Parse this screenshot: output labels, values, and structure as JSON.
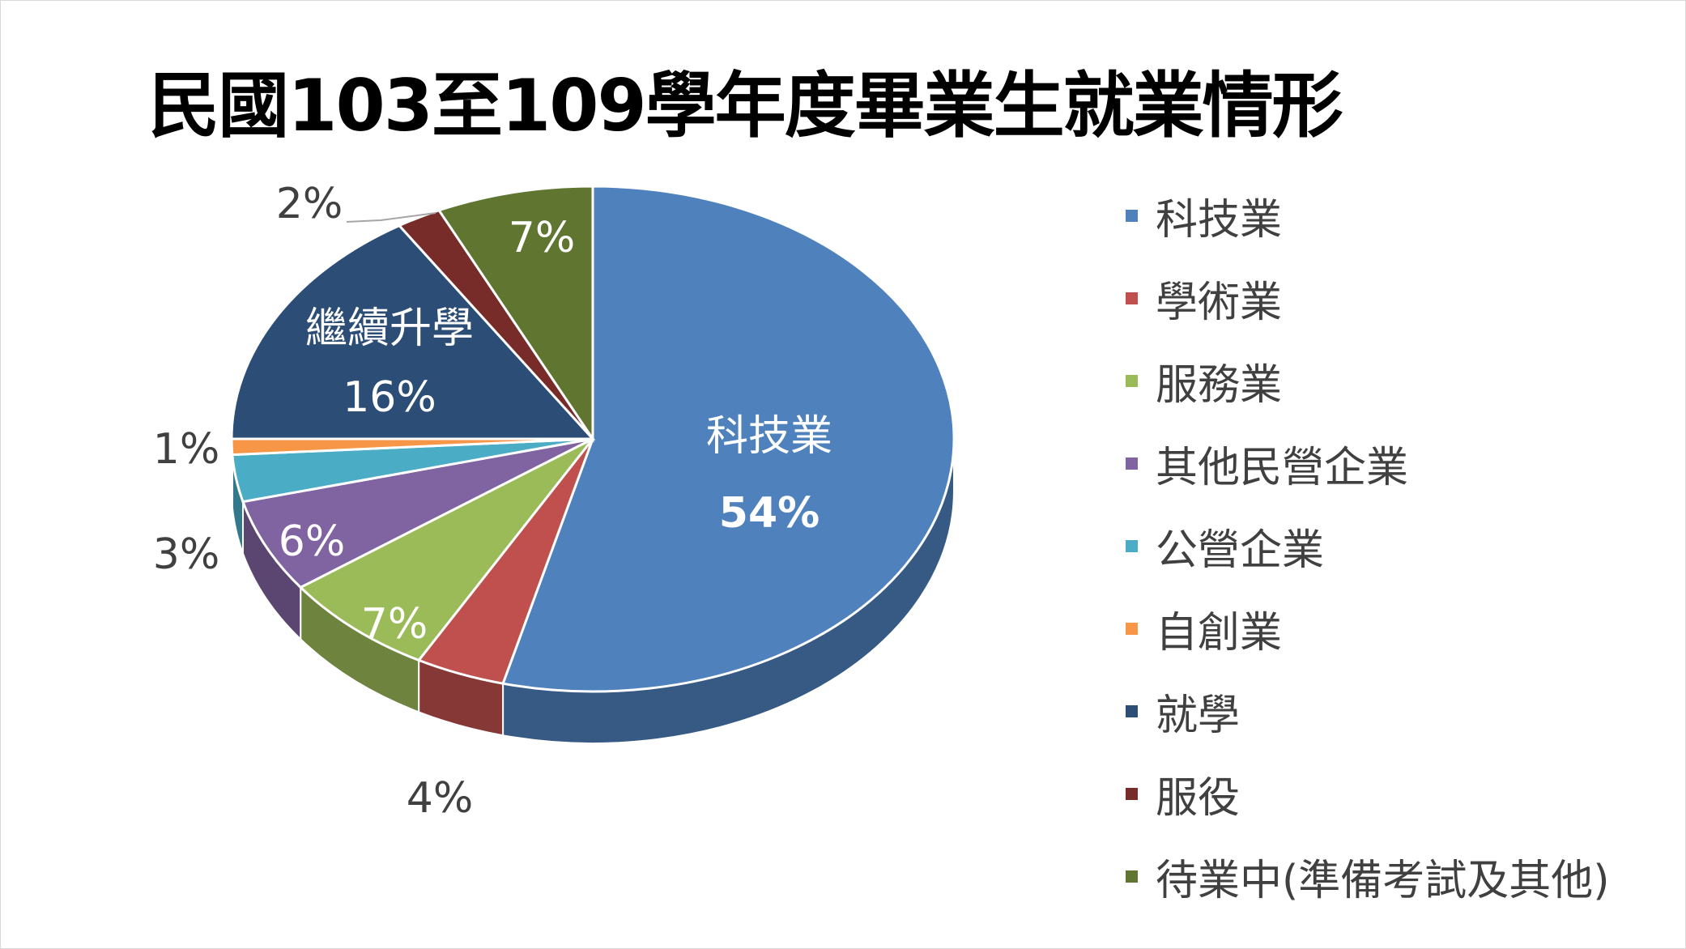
{
  "chart_data": {
    "type": "pie",
    "title": "民國103至109學年度畢業生就業情形",
    "categories": [
      "科技業",
      "學術業",
      "服務業",
      "其他民營企業",
      "公營企業",
      "自創業",
      "就學",
      "服役",
      "待業中(準備考試及其他)"
    ],
    "values": [
      54,
      4,
      7,
      6,
      3,
      1,
      16,
      2,
      7
    ],
    "unit": "%",
    "colors": [
      "#4f81bd",
      "#c0504d",
      "#9bbb59",
      "#8064a2",
      "#4bacc6",
      "#f79646",
      "#2c4d75",
      "#772c2a",
      "#5f7530"
    ],
    "data_labels": [
      "54%",
      "4%",
      "7%",
      "6%",
      "3%",
      "1%",
      "16%",
      "2%",
      "7%"
    ],
    "category_labels_on_chart": {
      "0": "科技業",
      "6": "繼續升學"
    },
    "legend_position": "right",
    "style": "3d-pie"
  }
}
